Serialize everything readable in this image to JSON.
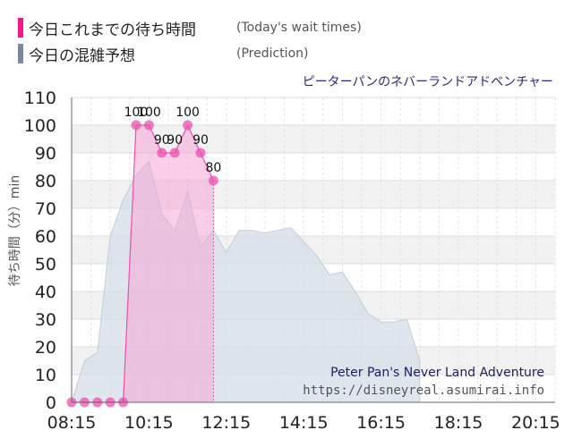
{
  "legend": {
    "items": [
      {
        "label": "今日これまでの待ち時間",
        "desc": "(Today's wait times)",
        "color": "#f0188c"
      },
      {
        "label": "今日の混雑予想",
        "desc": "(Prediction)",
        "color": "#7a86a0"
      }
    ]
  },
  "colors": {
    "today_line": "#ee4fae",
    "today_fill": "#f4a6d6",
    "prediction_fill": "#d6dee8",
    "attraction_title": "#2a2a7a",
    "footer_title": "#1f1f5f",
    "footer_url": "#555555"
  },
  "chart_data": {
    "type": "area",
    "title": "ピーターパンのネバーランドアドベンチャー",
    "ylabel": "待ち時間（分）min",
    "xlabel": "",
    "ylim": [
      0,
      110
    ],
    "yticks": [
      "0",
      "10",
      "20",
      "30",
      "40",
      "50",
      "60",
      "70",
      "80",
      "90",
      "100",
      "110"
    ],
    "xlim": [
      "08:15",
      "20:45"
    ],
    "xticks": [
      "08:15",
      "10:15",
      "12:15",
      "14:15",
      "16:15",
      "18:15",
      "20:15"
    ],
    "grid": true,
    "footer_title": "Peter Pan's Never Land Adventure",
    "footer_url": "https://disneyreal.asumirai.info",
    "series": [
      {
        "name": "今日これまでの待ち時間",
        "points": [
          {
            "x": "08:15",
            "y": 0
          },
          {
            "x": "08:35",
            "y": 0
          },
          {
            "x": "08:55",
            "y": 0
          },
          {
            "x": "09:15",
            "y": 0
          },
          {
            "x": "09:35",
            "y": 0
          },
          {
            "x": "09:55",
            "y": 100
          },
          {
            "x": "10:15",
            "y": 100
          },
          {
            "x": "10:35",
            "y": 90
          },
          {
            "x": "10:55",
            "y": 90
          },
          {
            "x": "11:15",
            "y": 100
          },
          {
            "x": "11:35",
            "y": 90
          },
          {
            "x": "11:55",
            "y": 80
          }
        ],
        "labels": [
          {
            "x": "09:55",
            "text": "100"
          },
          {
            "x": "10:15",
            "text": "100"
          },
          {
            "x": "10:35",
            "text": "90"
          },
          {
            "x": "10:55",
            "text": "90"
          },
          {
            "x": "11:15",
            "text": "100"
          },
          {
            "x": "11:35",
            "text": "90"
          },
          {
            "x": "11:55",
            "text": "80"
          }
        ]
      },
      {
        "name": "今日の混雑予想",
        "points": [
          {
            "x": "08:15",
            "y": 0
          },
          {
            "x": "08:35",
            "y": 15
          },
          {
            "x": "08:55",
            "y": 18
          },
          {
            "x": "09:15",
            "y": 60
          },
          {
            "x": "09:35",
            "y": 73
          },
          {
            "x": "09:55",
            "y": 82
          },
          {
            "x": "10:15",
            "y": 87
          },
          {
            "x": "10:35",
            "y": 68
          },
          {
            "x": "10:55",
            "y": 62
          },
          {
            "x": "11:15",
            "y": 76
          },
          {
            "x": "11:35",
            "y": 56
          },
          {
            "x": "11:55",
            "y": 62
          },
          {
            "x": "12:15",
            "y": 54
          },
          {
            "x": "12:35",
            "y": 62
          },
          {
            "x": "12:55",
            "y": 62
          },
          {
            "x": "13:15",
            "y": 61
          },
          {
            "x": "13:35",
            "y": 62
          },
          {
            "x": "13:55",
            "y": 63
          },
          {
            "x": "14:15",
            "y": 58
          },
          {
            "x": "14:35",
            "y": 53
          },
          {
            "x": "14:55",
            "y": 46
          },
          {
            "x": "15:15",
            "y": 47
          },
          {
            "x": "15:35",
            "y": 40
          },
          {
            "x": "15:55",
            "y": 32
          },
          {
            "x": "16:15",
            "y": 29
          },
          {
            "x": "16:35",
            "y": 29
          },
          {
            "x": "16:55",
            "y": 30
          },
          {
            "x": "17:15",
            "y": 15
          }
        ]
      }
    ]
  }
}
